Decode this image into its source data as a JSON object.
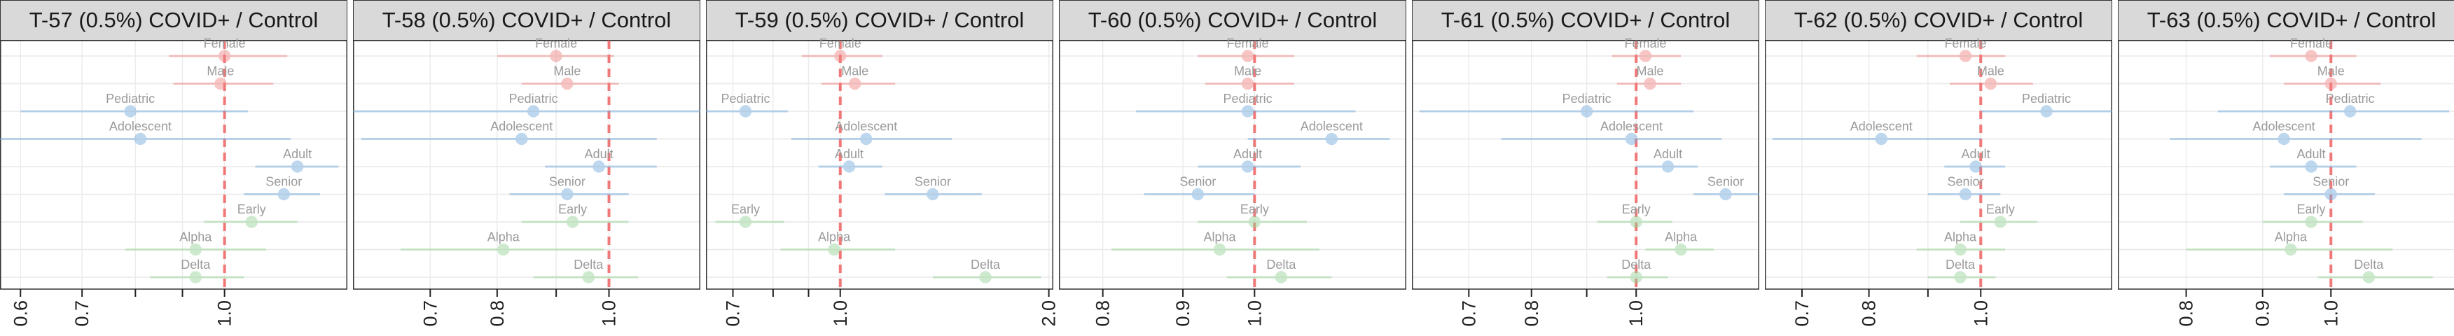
{
  "colors": {
    "sex": "#f08080",
    "age": "#6fa8dc",
    "variant": "#93d293",
    "highlight": "#2166ac",
    "reference_line": "#f06b6b",
    "strip_background": "#d9d9d9"
  },
  "chart_data": [
    {
      "type": "forest",
      "title": "T-57 (0.5%) COVID+ / Control",
      "x_scale": "log",
      "xlim": [
        0.57,
        1.36
      ],
      "reference_line": 1.0,
      "ticks": [
        {
          "value": 0.6,
          "label": "0.6"
        },
        {
          "value": 0.7,
          "label": "0.7"
        },
        {
          "value": 1.0,
          "label": "1.0"
        }
      ],
      "minor_ticks": [
        0.8,
        0.9
      ],
      "grid": true,
      "rows": [
        {
          "label": "Female",
          "group": "sex",
          "estimate": 1.0,
          "lower": 0.87,
          "upper": 1.17
        },
        {
          "label": "Male",
          "group": "sex",
          "estimate": 0.99,
          "lower": 0.88,
          "upper": 1.13
        },
        {
          "label": "Pediatric",
          "group": "age",
          "estimate": 0.79,
          "lower": 0.6,
          "upper": 1.06
        },
        {
          "label": "Adolescent",
          "group": "age",
          "estimate": 0.81,
          "lower": 0.57,
          "upper": 1.18
        },
        {
          "label": "Adult",
          "group": "age",
          "estimate": 1.2,
          "lower": 1.08,
          "upper": 1.33
        },
        {
          "label": "Senior",
          "group": "age",
          "estimate": 1.16,
          "lower": 1.05,
          "upper": 1.27
        },
        {
          "label": "Early",
          "group": "variant",
          "estimate": 1.07,
          "lower": 0.95,
          "upper": 1.2
        },
        {
          "label": "Alpha",
          "group": "variant",
          "estimate": 0.93,
          "lower": 0.78,
          "upper": 1.11
        },
        {
          "label": "Delta",
          "group": "variant",
          "estimate": 0.93,
          "lower": 0.83,
          "upper": 1.05
        }
      ]
    },
    {
      "type": "forest",
      "title": "T-58 (0.5%) COVID+ / Control",
      "x_scale": "log",
      "xlim": [
        0.6,
        1.2
      ],
      "reference_line": 1.0,
      "ticks": [
        {
          "value": 0.7,
          "label": "0.7"
        },
        {
          "value": 0.8,
          "label": "0.8"
        },
        {
          "value": 1.0,
          "label": "1.0"
        }
      ],
      "minor_ticks": [
        0.9
      ],
      "grid": true,
      "rows": [
        {
          "label": "Female",
          "group": "sex",
          "estimate": 0.9,
          "lower": 0.8,
          "upper": 1.01
        },
        {
          "label": "Male",
          "group": "sex",
          "estimate": 0.92,
          "lower": 0.84,
          "upper": 1.02
        },
        {
          "label": "Pediatric",
          "group": "age",
          "estimate": 0.86,
          "lower": 0.6,
          "upper": 1.2
        },
        {
          "label": "Adolescent",
          "group": "age",
          "estimate": 0.84,
          "lower": 0.61,
          "upper": 1.1
        },
        {
          "label": "Adult",
          "group": "age",
          "estimate": 0.98,
          "lower": 0.88,
          "upper": 1.1
        },
        {
          "label": "Senior",
          "group": "age",
          "estimate": 0.92,
          "lower": 0.82,
          "upper": 1.04
        },
        {
          "label": "Early",
          "group": "variant",
          "estimate": 0.93,
          "lower": 0.84,
          "upper": 1.04
        },
        {
          "label": "Alpha",
          "group": "variant",
          "estimate": 0.81,
          "lower": 0.66,
          "upper": 0.99
        },
        {
          "label": "Delta",
          "group": "variant",
          "estimate": 0.96,
          "lower": 0.86,
          "upper": 1.06
        }
      ]
    },
    {
      "type": "forest",
      "title": "T-59 (0.5%) COVID+ / Control",
      "x_scale": "log",
      "xlim": [
        0.64,
        2.03
      ],
      "reference_line": 1.0,
      "ticks": [
        {
          "value": 0.7,
          "label": "0.7"
        },
        {
          "value": 1.0,
          "label": "1.0"
        },
        {
          "value": 2.0,
          "label": "2.0"
        }
      ],
      "minor_ticks": [
        0.8,
        0.9
      ],
      "grid": true,
      "rows": [
        {
          "label": "Female",
          "group": "sex",
          "estimate": 1.0,
          "lower": 0.88,
          "upper": 1.15
        },
        {
          "label": "Male",
          "group": "sex",
          "estimate": 1.05,
          "lower": 0.94,
          "upper": 1.2
        },
        {
          "label": "Pediatric",
          "group": "age",
          "estimate": 0.73,
          "lower": 0.64,
          "upper": 0.84
        },
        {
          "label": "Adolescent",
          "group": "age",
          "estimate": 1.09,
          "lower": 0.85,
          "upper": 1.45
        },
        {
          "label": "Adult",
          "group": "age",
          "estimate": 1.03,
          "lower": 0.93,
          "upper": 1.15
        },
        {
          "label": "Senior",
          "group": "age",
          "estimate": 1.36,
          "lower": 1.16,
          "upper": 1.6
        },
        {
          "label": "Early",
          "group": "variant",
          "estimate": 0.73,
          "lower": 0.66,
          "upper": 0.83
        },
        {
          "label": "Alpha",
          "group": "variant",
          "estimate": 0.98,
          "lower": 0.82,
          "upper": 1.2
        },
        {
          "label": "Delta",
          "group": "variant",
          "estimate": 1.62,
          "lower": 1.36,
          "upper": 1.95
        }
      ]
    },
    {
      "type": "forest",
      "title": "T-60 (0.5%) COVID+ / Control",
      "x_scale": "log",
      "xlim": [
        0.75,
        1.25
      ],
      "reference_line": 1.0,
      "ticks": [
        {
          "value": 0.8,
          "label": "0.8"
        },
        {
          "value": 0.9,
          "label": "0.9"
        },
        {
          "value": 1.0,
          "label": "1.0"
        }
      ],
      "minor_ticks": [],
      "grid": true,
      "rows": [
        {
          "label": "Female",
          "group": "sex",
          "estimate": 0.99,
          "lower": 0.92,
          "upper": 1.06
        },
        {
          "label": "Male",
          "group": "sex",
          "estimate": 0.99,
          "lower": 0.93,
          "upper": 1.06
        },
        {
          "label": "Pediatric",
          "group": "age",
          "estimate": 0.99,
          "lower": 0.84,
          "upper": 1.16
        },
        {
          "label": "Adolescent",
          "group": "age",
          "estimate": 1.12,
          "lower": 0.99,
          "upper": 1.22
        },
        {
          "label": "Adult",
          "group": "age",
          "estimate": 0.99,
          "lower": 0.92,
          "upper": 1.07
        },
        {
          "label": "Senior",
          "group": "age",
          "estimate": 0.92,
          "lower": 0.85,
          "upper": 1.0
        },
        {
          "label": "Early",
          "group": "variant",
          "estimate": 1.0,
          "lower": 0.92,
          "upper": 1.08
        },
        {
          "label": "Alpha",
          "group": "variant",
          "estimate": 0.95,
          "lower": 0.81,
          "upper": 1.1
        },
        {
          "label": "Delta",
          "group": "variant",
          "estimate": 1.04,
          "lower": 0.96,
          "upper": 1.12
        }
      ]
    },
    {
      "type": "forest",
      "title": "T-61 (0.5%) COVID+ / Control",
      "x_scale": "log",
      "xlim": [
        0.62,
        1.3
      ],
      "reference_line": 1.0,
      "ticks": [
        {
          "value": 0.7,
          "label": "0.7"
        },
        {
          "value": 0.8,
          "label": "0.8"
        },
        {
          "value": 1.0,
          "label": "1.0"
        }
      ],
      "minor_ticks": [
        0.9
      ],
      "grid": true,
      "rows": [
        {
          "label": "Female",
          "group": "sex",
          "estimate": 1.02,
          "lower": 0.95,
          "upper": 1.1
        },
        {
          "label": "Male",
          "group": "sex",
          "estimate": 1.03,
          "lower": 0.96,
          "upper": 1.1
        },
        {
          "label": "Pediatric",
          "group": "age",
          "estimate": 0.9,
          "lower": 0.63,
          "upper": 1.13
        },
        {
          "label": "Adolescent",
          "group": "age",
          "estimate": 0.99,
          "lower": 0.75,
          "upper": 1.2
        },
        {
          "label": "Adult",
          "group": "age",
          "estimate": 1.07,
          "lower": 1.0,
          "upper": 1.14
        },
        {
          "label": "Senior",
          "group": "age",
          "estimate": 1.21,
          "lower": 1.13,
          "upper": 1.3
        },
        {
          "label": "Early",
          "group": "variant",
          "estimate": 1.0,
          "lower": 0.92,
          "upper": 1.08
        },
        {
          "label": "Alpha",
          "group": "variant",
          "estimate": 1.1,
          "lower": 1.02,
          "upper": 1.18
        },
        {
          "label": "Delta",
          "group": "variant",
          "estimate": 1.0,
          "lower": 0.94,
          "upper": 1.07
        }
      ]
    },
    {
      "type": "forest",
      "title": "T-62 (0.5%) COVID+ / Control",
      "x_scale": "log",
      "xlim": [
        0.65,
        1.3
      ],
      "reference_line": 1.0,
      "ticks": [
        {
          "value": 0.7,
          "label": "0.7"
        },
        {
          "value": 0.8,
          "label": "0.8"
        },
        {
          "value": 1.0,
          "label": "1.0"
        }
      ],
      "minor_ticks": [
        0.9
      ],
      "grid": true,
      "rows": [
        {
          "label": "Female",
          "group": "sex",
          "estimate": 0.97,
          "lower": 0.88,
          "upper": 1.05
        },
        {
          "label": "Male",
          "group": "sex",
          "estimate": 1.02,
          "lower": 0.94,
          "upper": 1.11
        },
        {
          "label": "Pediatric",
          "group": "age",
          "estimate": 1.14,
          "lower": 1.0,
          "upper": 1.3
        },
        {
          "label": "Adolescent",
          "group": "age",
          "estimate": 0.82,
          "lower": 0.66,
          "upper": 1.0
        },
        {
          "label": "Adult",
          "group": "age",
          "estimate": 0.99,
          "lower": 0.93,
          "upper": 1.05
        },
        {
          "label": "Senior",
          "group": "age",
          "estimate": 0.97,
          "lower": 0.9,
          "upper": 1.04
        },
        {
          "label": "Early",
          "group": "variant",
          "estimate": 1.04,
          "lower": 0.96,
          "upper": 1.12
        },
        {
          "label": "Alpha",
          "group": "variant",
          "estimate": 0.96,
          "lower": 0.88,
          "upper": 1.05
        },
        {
          "label": "Delta",
          "group": "variant",
          "estimate": 0.96,
          "lower": 0.9,
          "upper": 1.03
        }
      ]
    },
    {
      "type": "forest",
      "title": "T-63 (0.5%) COVID+ / Control",
      "x_scale": "log",
      "xlim": [
        0.72,
        1.23
      ],
      "reference_line": 1.0,
      "ticks": [
        {
          "value": 0.8,
          "label": "0.8"
        },
        {
          "value": 0.9,
          "label": "0.9"
        },
        {
          "value": 1.0,
          "label": "1.0"
        }
      ],
      "minor_ticks": [],
      "grid": true,
      "rows": [
        {
          "label": "Female",
          "group": "sex",
          "estimate": 0.97,
          "lower": 0.91,
          "upper": 1.04
        },
        {
          "label": "Male",
          "group": "sex",
          "estimate": 1.0,
          "lower": 0.93,
          "upper": 1.08
        },
        {
          "label": "Pediatric",
          "group": "age",
          "estimate": 1.03,
          "lower": 0.84,
          "upper": 1.2
        },
        {
          "label": "Adolescent",
          "group": "age",
          "estimate": 0.93,
          "lower": 0.78,
          "upper": 1.15
        },
        {
          "label": "Adult",
          "group": "age",
          "estimate": 0.97,
          "lower": 0.91,
          "upper": 1.04
        },
        {
          "label": "Senior",
          "group": "age",
          "estimate": 1.0,
          "lower": 0.93,
          "upper": 1.07
        },
        {
          "label": "Early",
          "group": "variant",
          "estimate": 0.97,
          "lower": 0.9,
          "upper": 1.05
        },
        {
          "label": "Alpha",
          "group": "variant",
          "estimate": 0.94,
          "lower": 0.8,
          "upper": 1.1
        },
        {
          "label": "Delta",
          "group": "variant",
          "estimate": 1.06,
          "lower": 0.98,
          "upper": 1.17
        }
      ]
    }
  ]
}
